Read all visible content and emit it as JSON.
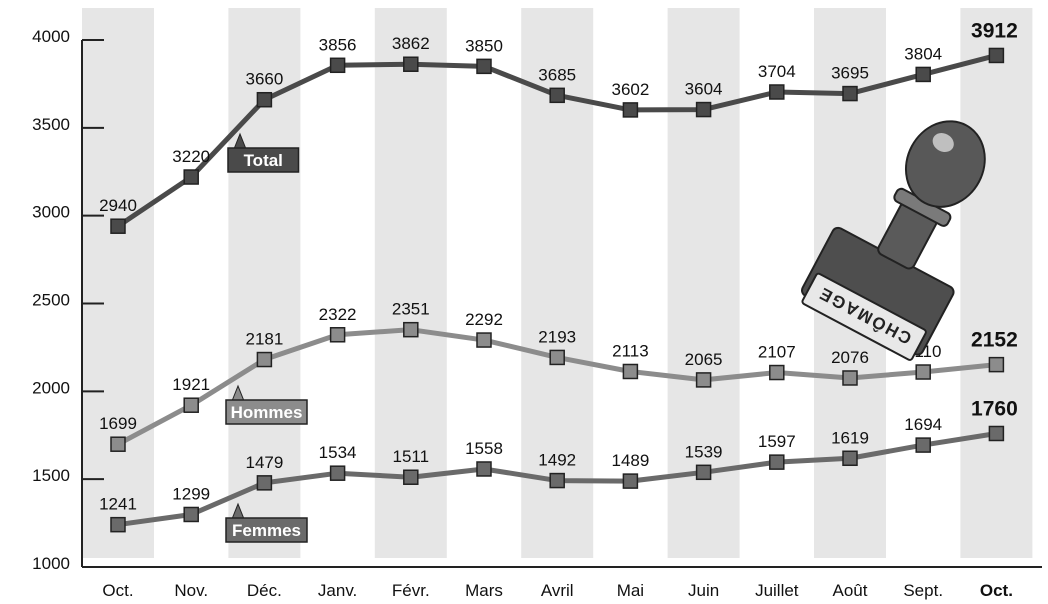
{
  "chart_data": {
    "type": "line",
    "categories": [
      "Oct.",
      "Nov.",
      "Déc.",
      "Janv.",
      "Févr.",
      "Mars",
      "Avril",
      "Mai",
      "Juin",
      "Juillet",
      "Août",
      "Sept.",
      "Oct."
    ],
    "ylim": [
      1000,
      4000
    ],
    "yticks": [
      1000,
      1500,
      2000,
      2500,
      3000,
      3500,
      4000
    ],
    "grid": "alternating vertical bands",
    "series": [
      {
        "name": "Total",
        "color": "#4a4a4a",
        "values": [
          2940,
          3220,
          3660,
          3856,
          3862,
          3850,
          3685,
          3602,
          3604,
          3704,
          3695,
          3804,
          3912
        ]
      },
      {
        "name": "Hommes",
        "color": "#8c8c8c",
        "values": [
          1699,
          1921,
          2181,
          2322,
          2351,
          2292,
          2193,
          2113,
          2065,
          2107,
          2076,
          2110,
          2152
        ]
      },
      {
        "name": "Femmes",
        "color": "#6a6a6a",
        "values": [
          1241,
          1299,
          1479,
          1534,
          1511,
          1558,
          1492,
          1489,
          1539,
          1597,
          1619,
          1694,
          1760
        ]
      }
    ]
  },
  "illustration": {
    "name": "rubber-stamp-icon",
    "text": "CHÔMAGE"
  }
}
